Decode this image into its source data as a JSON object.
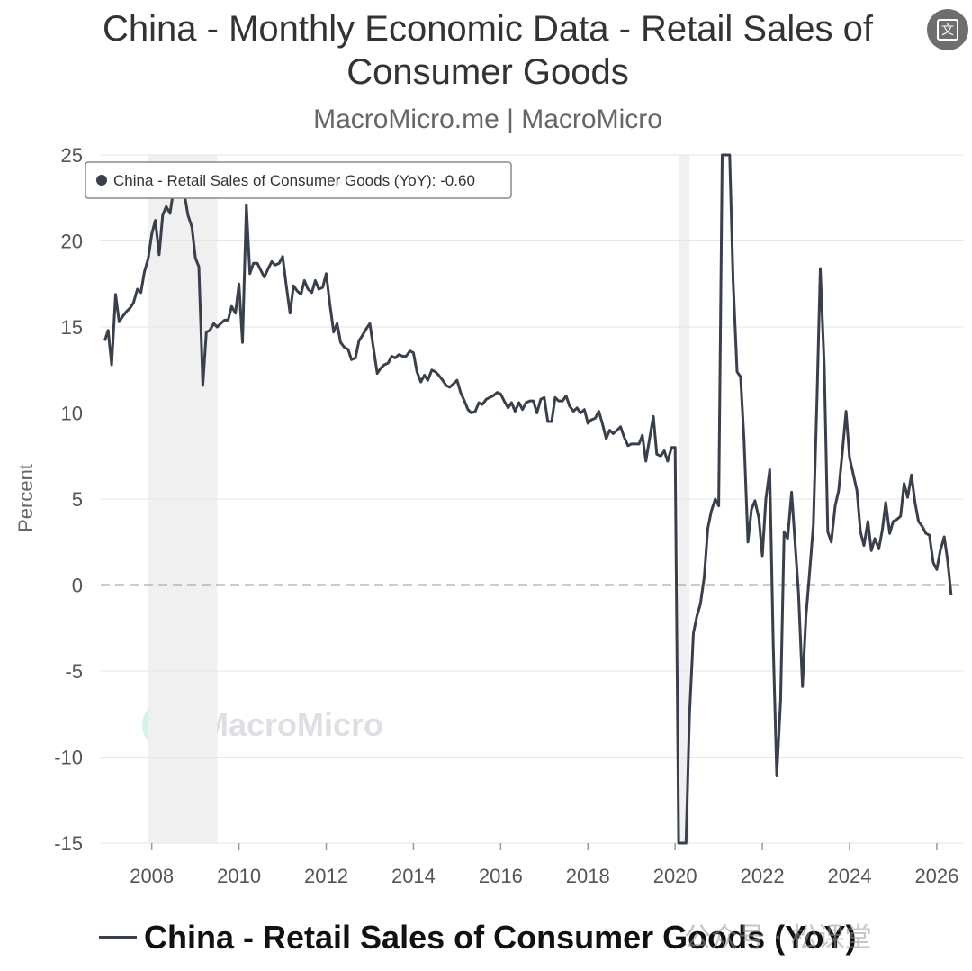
{
  "header": {
    "title_line1": "China - Monthly Economic Data - Retail Sales of",
    "title_line2": "Consumer Goods",
    "subtitle": "MacroMicro.me | MacroMicro",
    "translate_icon": "translate-icon",
    "translate_glyph": "文"
  },
  "tooltip": {
    "text": "China - Retail Sales of Consumer Goods (YoY): -0.60"
  },
  "legend": {
    "label": "China - Retail Sales of Consumer Goods (YoY)"
  },
  "watermark": {
    "text": "MacroMicro",
    "icon": "chart-logo-icon",
    "overlay_text": "公众号 · 松课堂"
  },
  "colors": {
    "line": "#3a3f4c",
    "grid": "#e6e6e6",
    "zero_line": "#999999",
    "recession_band": "#f0f0f0"
  },
  "chart_data": {
    "type": "line",
    "ylabel": "Percent",
    "xlabel": "",
    "ylim": [
      -15,
      25
    ],
    "xlim": [
      2006.83,
      2026.6
    ],
    "y_ticks": [
      25,
      20,
      15,
      10,
      5,
      0,
      -5,
      -10,
      -15
    ],
    "x_ticks": [
      2008,
      2010,
      2012,
      2014,
      2016,
      2018,
      2020,
      2022,
      2024,
      2026
    ],
    "grid": true,
    "zero_line": "dashed",
    "legend_position": "bottom",
    "shaded_periods": [
      [
        2007.92,
        2009.5
      ],
      [
        2020.08,
        2020.33
      ]
    ],
    "series": [
      {
        "name": "China - Retail Sales of Consumer Goods (YoY)",
        "points": [
          [
            2006.92,
            14.2
          ],
          [
            2007.0,
            14.8
          ],
          [
            2007.08,
            12.8
          ],
          [
            2007.17,
            16.9
          ],
          [
            2007.25,
            15.3
          ],
          [
            2007.33,
            15.6
          ],
          [
            2007.42,
            15.9
          ],
          [
            2007.5,
            16.1
          ],
          [
            2007.58,
            16.4
          ],
          [
            2007.67,
            17.2
          ],
          [
            2007.75,
            17.0
          ],
          [
            2007.83,
            18.2
          ],
          [
            2007.92,
            19.0
          ],
          [
            2008.0,
            20.4
          ],
          [
            2008.08,
            21.2
          ],
          [
            2008.17,
            19.2
          ],
          [
            2008.25,
            21.5
          ],
          [
            2008.33,
            22.0
          ],
          [
            2008.42,
            21.6
          ],
          [
            2008.5,
            23.0
          ],
          [
            2008.58,
            23.2
          ],
          [
            2008.67,
            23.1
          ],
          [
            2008.75,
            22.7
          ],
          [
            2008.83,
            21.5
          ],
          [
            2008.92,
            20.8
          ],
          [
            2009.0,
            19.0
          ],
          [
            2009.08,
            18.5
          ],
          [
            2009.17,
            11.6
          ],
          [
            2009.25,
            14.7
          ],
          [
            2009.33,
            14.8
          ],
          [
            2009.42,
            15.2
          ],
          [
            2009.5,
            15.0
          ],
          [
            2009.58,
            15.2
          ],
          [
            2009.67,
            15.4
          ],
          [
            2009.75,
            15.4
          ],
          [
            2009.83,
            16.2
          ],
          [
            2009.92,
            15.8
          ],
          [
            2010.0,
            17.5
          ],
          [
            2010.08,
            14.1
          ],
          [
            2010.17,
            22.1
          ],
          [
            2010.25,
            18.1
          ],
          [
            2010.33,
            18.7
          ],
          [
            2010.42,
            18.7
          ],
          [
            2010.5,
            18.3
          ],
          [
            2010.58,
            17.9
          ],
          [
            2010.67,
            18.4
          ],
          [
            2010.75,
            18.8
          ],
          [
            2010.83,
            18.6
          ],
          [
            2010.92,
            18.7
          ],
          [
            2011.0,
            19.1
          ],
          [
            2011.08,
            17.5
          ],
          [
            2011.17,
            15.8
          ],
          [
            2011.25,
            17.4
          ],
          [
            2011.33,
            17.1
          ],
          [
            2011.42,
            16.9
          ],
          [
            2011.5,
            17.7
          ],
          [
            2011.58,
            17.2
          ],
          [
            2011.67,
            17.0
          ],
          [
            2011.75,
            17.7
          ],
          [
            2011.83,
            17.2
          ],
          [
            2011.92,
            17.3
          ],
          [
            2012.0,
            18.1
          ],
          [
            2012.08,
            16.4
          ],
          [
            2012.17,
            14.7
          ],
          [
            2012.25,
            15.2
          ],
          [
            2012.33,
            14.1
          ],
          [
            2012.42,
            13.8
          ],
          [
            2012.5,
            13.7
          ],
          [
            2012.58,
            13.1
          ],
          [
            2012.67,
            13.2
          ],
          [
            2012.75,
            14.2
          ],
          [
            2012.83,
            14.5
          ],
          [
            2012.92,
            14.9
          ],
          [
            2013.0,
            15.2
          ],
          [
            2013.08,
            13.8
          ],
          [
            2013.17,
            12.3
          ],
          [
            2013.25,
            12.6
          ],
          [
            2013.33,
            12.8
          ],
          [
            2013.42,
            12.9
          ],
          [
            2013.5,
            13.3
          ],
          [
            2013.58,
            13.2
          ],
          [
            2013.67,
            13.4
          ],
          [
            2013.75,
            13.3
          ],
          [
            2013.83,
            13.3
          ],
          [
            2013.92,
            13.6
          ],
          [
            2014.0,
            13.5
          ],
          [
            2014.08,
            12.4
          ],
          [
            2014.17,
            11.8
          ],
          [
            2014.25,
            12.2
          ],
          [
            2014.33,
            11.9
          ],
          [
            2014.42,
            12.5
          ],
          [
            2014.5,
            12.4
          ],
          [
            2014.58,
            12.2
          ],
          [
            2014.67,
            11.9
          ],
          [
            2014.75,
            11.6
          ],
          [
            2014.83,
            11.5
          ],
          [
            2014.92,
            11.7
          ],
          [
            2015.0,
            11.9
          ],
          [
            2015.08,
            11.2
          ],
          [
            2015.17,
            10.7
          ],
          [
            2015.25,
            10.2
          ],
          [
            2015.33,
            10.0
          ],
          [
            2015.42,
            10.1
          ],
          [
            2015.5,
            10.6
          ],
          [
            2015.58,
            10.5
          ],
          [
            2015.67,
            10.8
          ],
          [
            2015.75,
            10.9
          ],
          [
            2015.83,
            11.0
          ],
          [
            2015.92,
            11.2
          ],
          [
            2016.0,
            11.1
          ],
          [
            2016.08,
            10.7
          ],
          [
            2016.17,
            10.3
          ],
          [
            2016.25,
            10.6
          ],
          [
            2016.33,
            10.1
          ],
          [
            2016.42,
            10.6
          ],
          [
            2016.5,
            10.2
          ],
          [
            2016.58,
            10.6
          ],
          [
            2016.67,
            10.7
          ],
          [
            2016.75,
            10.7
          ],
          [
            2016.83,
            10.0
          ],
          [
            2016.92,
            10.8
          ],
          [
            2017.0,
            10.9
          ],
          [
            2017.08,
            9.5
          ],
          [
            2017.17,
            9.5
          ],
          [
            2017.25,
            10.9
          ],
          [
            2017.33,
            10.7
          ],
          [
            2017.42,
            10.7
          ],
          [
            2017.5,
            11.0
          ],
          [
            2017.58,
            10.4
          ],
          [
            2017.67,
            10.1
          ],
          [
            2017.75,
            10.3
          ],
          [
            2017.83,
            10.0
          ],
          [
            2017.92,
            10.2
          ],
          [
            2018.0,
            9.4
          ],
          [
            2018.08,
            9.6
          ],
          [
            2018.17,
            9.7
          ],
          [
            2018.25,
            10.1
          ],
          [
            2018.33,
            9.4
          ],
          [
            2018.42,
            8.5
          ],
          [
            2018.5,
            9.0
          ],
          [
            2018.58,
            8.8
          ],
          [
            2018.67,
            9.0
          ],
          [
            2018.75,
            9.2
          ],
          [
            2018.83,
            8.6
          ],
          [
            2018.92,
            8.1
          ],
          [
            2019.0,
            8.2
          ],
          [
            2019.08,
            8.2
          ],
          [
            2019.17,
            8.2
          ],
          [
            2019.25,
            8.7
          ],
          [
            2019.33,
            7.2
          ],
          [
            2019.42,
            8.6
          ],
          [
            2019.5,
            9.8
          ],
          [
            2019.58,
            7.6
          ],
          [
            2019.67,
            7.5
          ],
          [
            2019.75,
            7.8
          ],
          [
            2019.83,
            7.2
          ],
          [
            2019.92,
            8.0
          ],
          [
            2020.0,
            8.0
          ],
          [
            2020.08,
            -15.0
          ],
          [
            2020.17,
            -15.0
          ],
          [
            2020.25,
            -15.0
          ],
          [
            2020.33,
            -7.5
          ],
          [
            2020.42,
            -2.8
          ],
          [
            2020.5,
            -1.8
          ],
          [
            2020.58,
            -1.1
          ],
          [
            2020.67,
            0.5
          ],
          [
            2020.75,
            3.3
          ],
          [
            2020.83,
            4.3
          ],
          [
            2020.92,
            5.0
          ],
          [
            2021.0,
            4.6
          ],
          [
            2021.08,
            25.0
          ],
          [
            2021.17,
            25.0
          ],
          [
            2021.25,
            25.0
          ],
          [
            2021.33,
            17.7
          ],
          [
            2021.42,
            12.4
          ],
          [
            2021.5,
            12.1
          ],
          [
            2021.58,
            8.5
          ],
          [
            2021.67,
            2.5
          ],
          [
            2021.75,
            4.4
          ],
          [
            2021.83,
            4.9
          ],
          [
            2021.92,
            3.9
          ],
          [
            2022.0,
            1.7
          ],
          [
            2022.08,
            5.0
          ],
          [
            2022.17,
            6.7
          ],
          [
            2022.25,
            -3.5
          ],
          [
            2022.33,
            -11.1
          ],
          [
            2022.42,
            -6.7
          ],
          [
            2022.5,
            3.1
          ],
          [
            2022.58,
            2.7
          ],
          [
            2022.67,
            5.4
          ],
          [
            2022.75,
            2.5
          ],
          [
            2022.83,
            -0.5
          ],
          [
            2022.92,
            -5.9
          ],
          [
            2023.0,
            -1.8
          ],
          [
            2023.08,
            0.6
          ],
          [
            2023.17,
            3.5
          ],
          [
            2023.25,
            10.6
          ],
          [
            2023.33,
            18.4
          ],
          [
            2023.42,
            12.7
          ],
          [
            2023.5,
            3.1
          ],
          [
            2023.58,
            2.5
          ],
          [
            2023.67,
            4.6
          ],
          [
            2023.75,
            5.5
          ],
          [
            2023.83,
            7.6
          ],
          [
            2023.92,
            10.1
          ],
          [
            2024.0,
            7.4
          ],
          [
            2024.08,
            6.5
          ],
          [
            2024.17,
            5.5
          ],
          [
            2024.25,
            3.1
          ],
          [
            2024.33,
            2.3
          ],
          [
            2024.42,
            3.7
          ],
          [
            2024.5,
            2.0
          ],
          [
            2024.58,
            2.7
          ],
          [
            2024.67,
            2.1
          ],
          [
            2024.75,
            3.2
          ],
          [
            2024.83,
            4.8
          ],
          [
            2024.92,
            3.0
          ],
          [
            2025.0,
            3.7
          ],
          [
            2025.08,
            3.8
          ],
          [
            2025.17,
            4.0
          ],
          [
            2025.25,
            5.9
          ],
          [
            2025.33,
            5.1
          ],
          [
            2025.42,
            6.4
          ],
          [
            2025.5,
            4.8
          ],
          [
            2025.58,
            3.7
          ],
          [
            2025.67,
            3.4
          ],
          [
            2025.75,
            3.0
          ],
          [
            2025.83,
            2.9
          ],
          [
            2025.92,
            1.3
          ],
          [
            2026.0,
            0.9
          ],
          [
            2026.08,
            2.0
          ],
          [
            2026.17,
            2.8
          ],
          [
            2026.25,
            1.4
          ],
          [
            2026.33,
            -0.6
          ]
        ]
      }
    ]
  }
}
